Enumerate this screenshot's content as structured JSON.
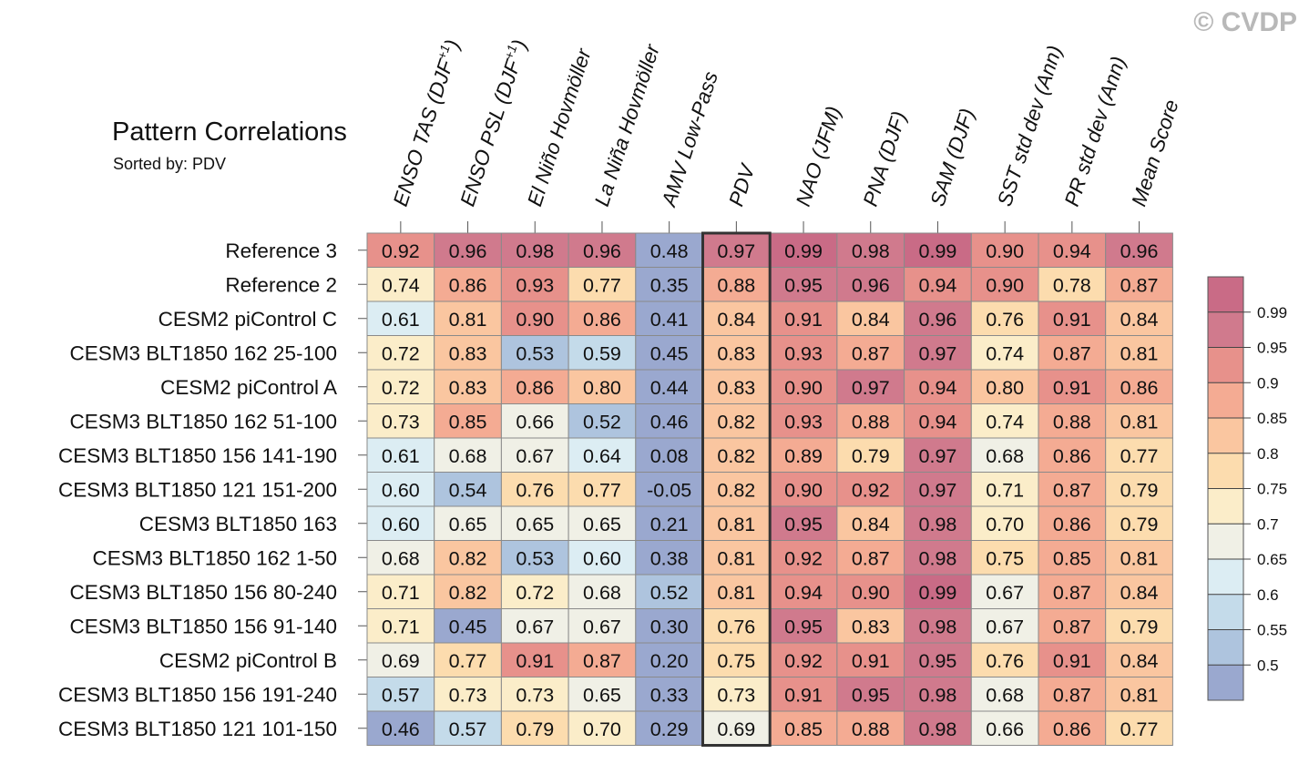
{
  "copyright": "© CVDP",
  "chart_data": {
    "type": "heatmap",
    "title": "Pattern Correlations",
    "subtitle": "Sorted by: PDV",
    "highlight_column": "PDV",
    "columns": [
      {
        "label": "ENSO TAS (DJF",
        "sup": "+1",
        "close": ")"
      },
      {
        "label": "ENSO PSL (DJF",
        "sup": "+1",
        "close": ")"
      },
      {
        "label": "El Niño Hovmöller"
      },
      {
        "label": "La Niña Hovmöller"
      },
      {
        "label": "AMV Low-Pass"
      },
      {
        "label": "PDV"
      },
      {
        "label": "NAO (JFM)"
      },
      {
        "label": "PNA (DJF)"
      },
      {
        "label": "SAM (DJF)"
      },
      {
        "label": "SST std dev (Ann)"
      },
      {
        "label": "PR std dev (Ann)"
      },
      {
        "label": "Mean Score"
      }
    ],
    "rows": [
      "Reference 3",
      "Reference 2",
      "CESM2 piControl C",
      "CESM3 BLT1850 162 25-100",
      "CESM2 piControl A",
      "CESM3 BLT1850 162 51-100",
      "CESM3 BLT1850 156 141-190",
      "CESM3 BLT1850 121 151-200",
      "CESM3 BLT1850 163",
      "CESM3 BLT1850 162 1-50",
      "CESM3 BLT1850 156 80-240",
      "CESM3 BLT1850 156 91-140",
      "CESM2 piControl B",
      "CESM3 BLT1850 156 191-240",
      "CESM3 BLT1850 121 101-150"
    ],
    "values": [
      [
        "0.92",
        "0.96",
        "0.98",
        "0.96",
        "0.48",
        "0.97",
        "0.99",
        "0.98",
        "0.99",
        "0.90",
        "0.94",
        "0.96"
      ],
      [
        "0.74",
        "0.86",
        "0.93",
        "0.77",
        "0.35",
        "0.88",
        "0.95",
        "0.96",
        "0.94",
        "0.90",
        "0.78",
        "0.87"
      ],
      [
        "0.61",
        "0.81",
        "0.90",
        "0.86",
        "0.41",
        "0.84",
        "0.91",
        "0.84",
        "0.96",
        "0.76",
        "0.91",
        "0.84"
      ],
      [
        "0.72",
        "0.83",
        "0.53",
        "0.59",
        "0.45",
        "0.83",
        "0.93",
        "0.87",
        "0.97",
        "0.74",
        "0.87",
        "0.81"
      ],
      [
        "0.72",
        "0.83",
        "0.86",
        "0.80",
        "0.44",
        "0.83",
        "0.90",
        "0.97",
        "0.94",
        "0.80",
        "0.91",
        "0.86"
      ],
      [
        "0.73",
        "0.85",
        "0.66",
        "0.52",
        "0.46",
        "0.82",
        "0.93",
        "0.88",
        "0.94",
        "0.74",
        "0.88",
        "0.81"
      ],
      [
        "0.61",
        "0.68",
        "0.67",
        "0.64",
        "0.08",
        "0.82",
        "0.89",
        "0.79",
        "0.97",
        "0.68",
        "0.86",
        "0.77"
      ],
      [
        "0.60",
        "0.54",
        "0.76",
        "0.77",
        "-0.05",
        "0.82",
        "0.90",
        "0.92",
        "0.97",
        "0.71",
        "0.87",
        "0.79"
      ],
      [
        "0.60",
        "0.65",
        "0.65",
        "0.65",
        "0.21",
        "0.81",
        "0.95",
        "0.84",
        "0.98",
        "0.70",
        "0.86",
        "0.79"
      ],
      [
        "0.68",
        "0.82",
        "0.53",
        "0.60",
        "0.38",
        "0.81",
        "0.92",
        "0.87",
        "0.98",
        "0.75",
        "0.85",
        "0.81"
      ],
      [
        "0.71",
        "0.82",
        "0.72",
        "0.68",
        "0.52",
        "0.81",
        "0.94",
        "0.90",
        "0.99",
        "0.67",
        "0.87",
        "0.84"
      ],
      [
        "0.71",
        "0.45",
        "0.67",
        "0.67",
        "0.30",
        "0.76",
        "0.95",
        "0.83",
        "0.98",
        "0.67",
        "0.87",
        "0.79"
      ],
      [
        "0.69",
        "0.77",
        "0.91",
        "0.87",
        "0.20",
        "0.75",
        "0.92",
        "0.91",
        "0.95",
        "0.76",
        "0.91",
        "0.84"
      ],
      [
        "0.57",
        "0.73",
        "0.73",
        "0.65",
        "0.33",
        "0.73",
        "0.91",
        "0.95",
        "0.98",
        "0.68",
        "0.87",
        "0.81"
      ],
      [
        "0.46",
        "0.57",
        "0.79",
        "0.70",
        "0.29",
        "0.69",
        "0.85",
        "0.88",
        "0.98",
        "0.66",
        "0.86",
        "0.77"
      ]
    ],
    "colorbar": {
      "levels": [
        "0.99",
        "0.95",
        "0.9",
        "0.85",
        "0.8",
        "0.75",
        "0.7",
        "0.65",
        "0.6",
        "0.55",
        "0.5"
      ],
      "thresholds": [
        0.5,
        0.55,
        0.6,
        0.65,
        0.7,
        0.75,
        0.8,
        0.85,
        0.9,
        0.95,
        0.99
      ],
      "colors": [
        "#9aa8cf",
        "#aec4de",
        "#c4dbea",
        "#dcedf3",
        "#f0f0e6",
        "#fbedc9",
        "#fcdcae",
        "#fac6a0",
        "#f4ab93",
        "#e7918b",
        "#d07a8d",
        "#c96b86"
      ]
    }
  }
}
